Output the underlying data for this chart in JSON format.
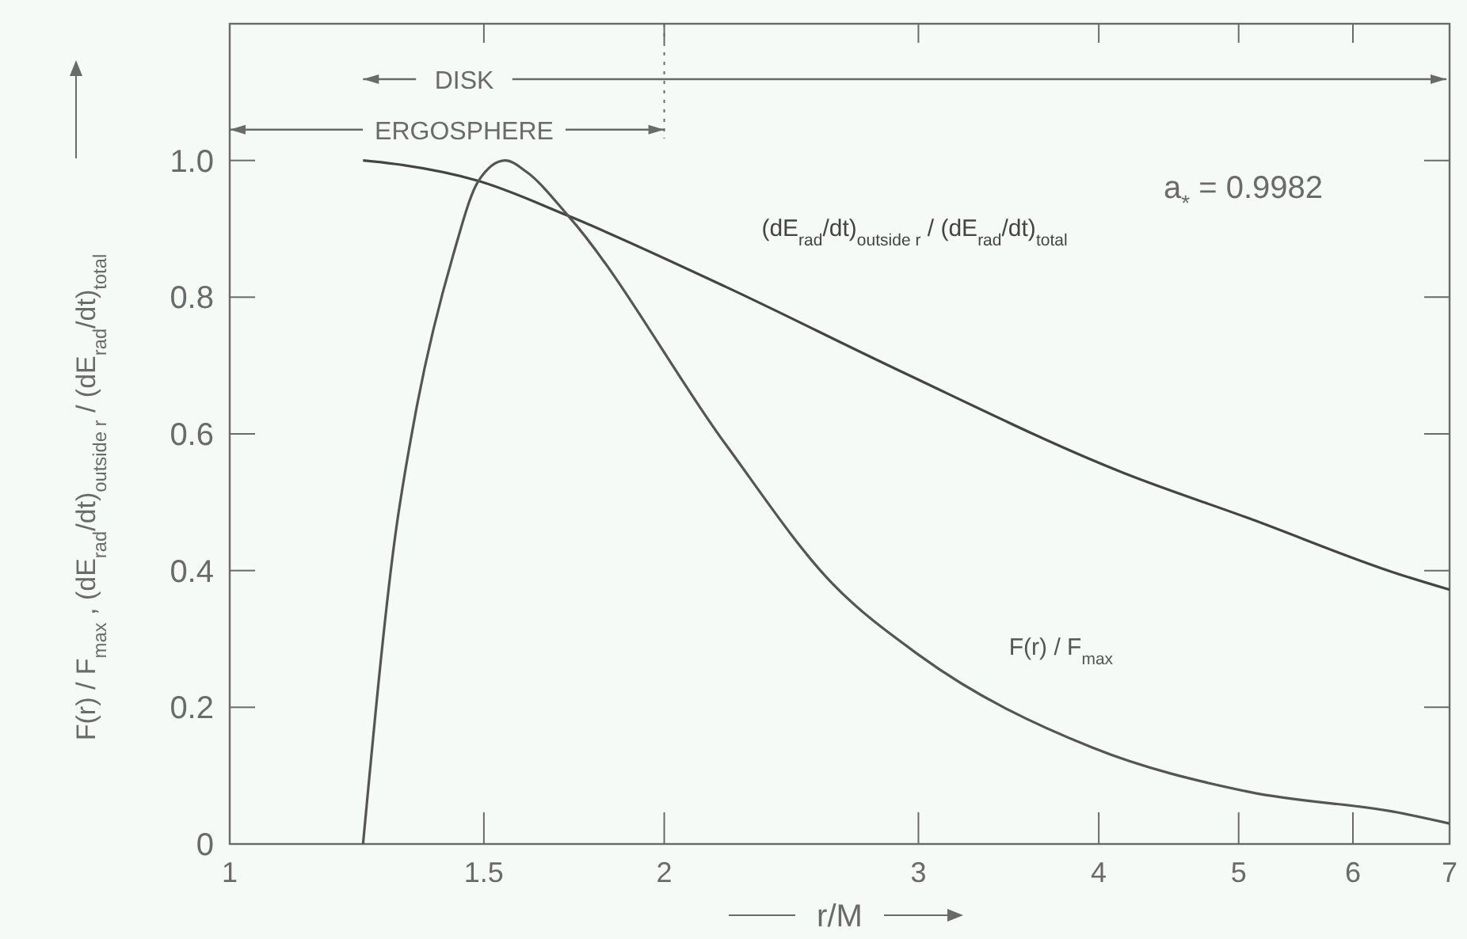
{
  "chart_data": {
    "type": "line",
    "xlabel": "r/M",
    "ylabel": "F(r) / F$_{max}$ , (dE$_{rad}$/dt)$_{outside r}$ / (dE$_{rad}$/dt)$_{total}$",
    "log": "x",
    "xlim": [
      1,
      7
    ],
    "xticks": [
      1,
      1.5,
      2,
      3,
      4,
      5,
      6,
      7
    ],
    "ylim": [
      0,
      1.2
    ],
    "yticks": [
      0,
      0.2,
      0.4,
      0.6,
      0.8,
      {
        "value": 1,
        "label": "1.0"
      }
    ],
    "series": [
      {
        "name": "(dE$_{rad}$/dt)$_{outside r}$ / (dE$_{rad}$/dt)$_{total}$",
        "color": "#444444",
        "x": [
          1.237,
          1.3,
          1.487,
          1.716,
          2.207,
          2.907,
          4.16,
          5.09,
          6.45,
          7
        ],
        "values": [
          1.0,
          0.995,
          0.97,
          0.919,
          0.815,
          0.693,
          0.543,
          0.476,
          0.395,
          0.372
        ]
      },
      {
        "name": "F(r) / F$_{max}$",
        "color": "#555555",
        "x": [
          1.237,
          1.302,
          1.345,
          1.428,
          1.487,
          1.552,
          1.604,
          1.716,
          2.207,
          2.61,
          3.0,
          3.96,
          5.09,
          6.45,
          7
        ],
        "values": [
          0,
          0.45,
          0.63,
          0.861,
          0.97,
          1.0,
          0.984,
          0.919,
          0.584,
          0.383,
          0.277,
          0.141,
          0.076,
          0.046,
          0.03
        ]
      }
    ],
    "annotations": [
      "DISK",
      {
        "text": "ERGOSPHERE",
        "x": 2,
        "y": 1.045
      },
      "a$_{*}$ = 0.9982"
    ],
    "ref_lines": [
      {
        "axis": "x",
        "value": 2,
        "line_style": "dotted"
      }
    ]
  }
}
